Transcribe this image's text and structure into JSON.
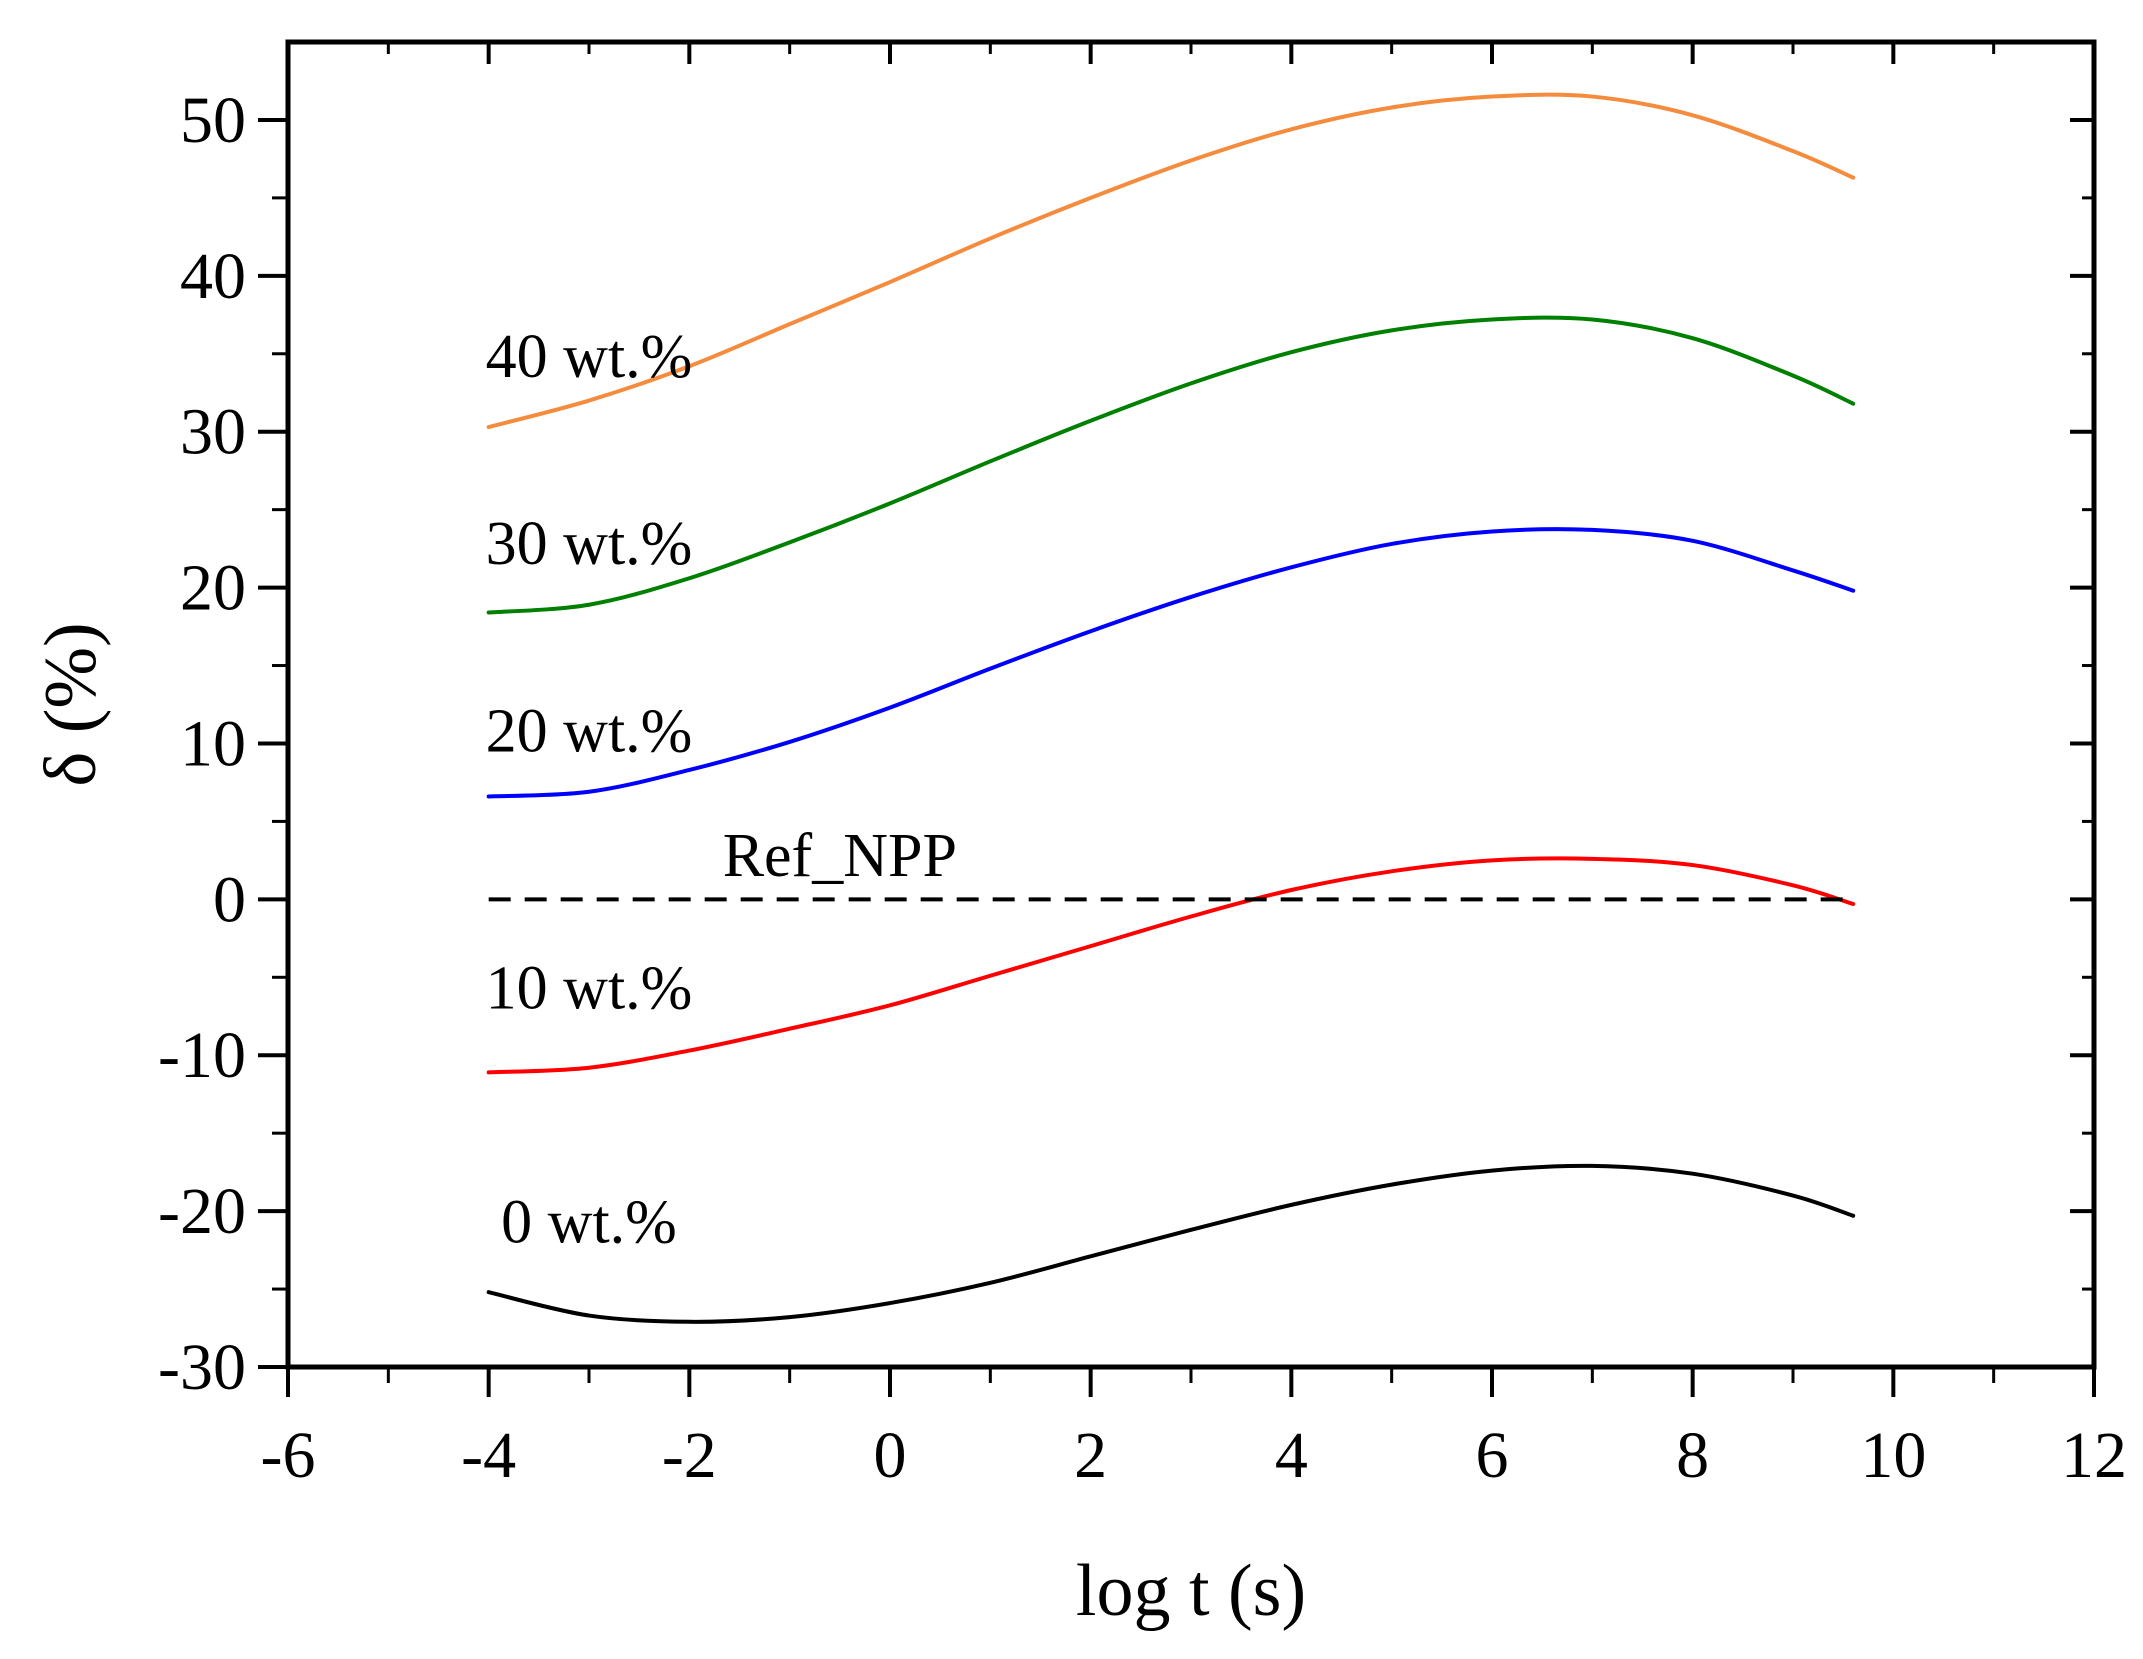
{
  "chart_data": {
    "type": "line",
    "title": "",
    "xlabel": "log t (s)",
    "ylabel": "δ (%)",
    "xlim": [
      -6,
      12
    ],
    "ylim": [
      -30,
      55
    ],
    "xticks": [
      -6,
      -4,
      -2,
      0,
      2,
      4,
      6,
      8,
      10,
      12
    ],
    "yticks": [
      -30,
      -20,
      -10,
      0,
      10,
      20,
      30,
      40,
      50
    ],
    "grid": false,
    "legend": "inline labels",
    "series": [
      {
        "name": "0 wt.%",
        "color": "#000000",
        "dash": false,
        "label_at": [
          -3,
          -22
        ],
        "x": [
          -4,
          -3,
          -2,
          -1,
          0,
          1,
          2,
          3,
          4,
          5,
          6,
          7,
          8,
          9,
          9.6
        ],
        "values": [
          -25.2,
          -26.7,
          -27.1,
          -26.8,
          -25.9,
          -24.6,
          -22.9,
          -21.2,
          -19.6,
          -18.3,
          -17.4,
          -17.1,
          -17.6,
          -19.0,
          -20.3
        ]
      },
      {
        "name": "10 wt.%",
        "color": "#ff0000",
        "dash": false,
        "label_at": [
          -3,
          -7
        ],
        "x": [
          -4,
          -3,
          -2,
          -1,
          0,
          1,
          2,
          3,
          4,
          5,
          6,
          7,
          8,
          9,
          9.6
        ],
        "values": [
          -11.1,
          -10.8,
          -9.7,
          -8.3,
          -6.8,
          -4.9,
          -3.0,
          -1.1,
          0.6,
          1.8,
          2.5,
          2.6,
          2.2,
          0.9,
          -0.3
        ]
      },
      {
        "name": "Ref_NPP",
        "color": "#000000",
        "dash": true,
        "label_at": [
          -0.5,
          1.5
        ],
        "x": [
          -4,
          9.6
        ],
        "values": [
          0,
          0
        ]
      },
      {
        "name": "20 wt.%",
        "color": "#0000ff",
        "dash": false,
        "label_at": [
          -3,
          9.5
        ],
        "x": [
          -4,
          -3,
          -2,
          -1,
          0,
          1,
          2,
          3,
          4,
          5,
          6,
          7,
          8,
          9,
          9.6
        ],
        "values": [
          6.6,
          6.9,
          8.3,
          10.1,
          12.3,
          14.8,
          17.2,
          19.4,
          21.3,
          22.8,
          23.6,
          23.7,
          23.0,
          21.1,
          19.8
        ]
      },
      {
        "name": "30 wt.%",
        "color": "#008000",
        "dash": false,
        "label_at": [
          -3,
          21.5
        ],
        "x": [
          -4,
          -3,
          -2,
          -1,
          0,
          1,
          2,
          3,
          4,
          5,
          6,
          7,
          8,
          9,
          9.6
        ],
        "values": [
          18.4,
          18.9,
          20.6,
          22.9,
          25.4,
          28.1,
          30.7,
          33.1,
          35.1,
          36.5,
          37.2,
          37.2,
          36.0,
          33.6,
          31.8
        ]
      },
      {
        "name": "40 wt.%",
        "color": "#f58b3c",
        "dash": false,
        "label_at": [
          -3,
          33.5
        ],
        "x": [
          -4,
          -3,
          -2,
          -1,
          0,
          1,
          2,
          3,
          4,
          5,
          6,
          7,
          8,
          9,
          9.6
        ],
        "values": [
          30.3,
          32.0,
          34.2,
          36.9,
          39.6,
          42.4,
          45.0,
          47.4,
          49.4,
          50.8,
          51.5,
          51.5,
          50.3,
          48.0,
          46.3
        ]
      }
    ]
  }
}
